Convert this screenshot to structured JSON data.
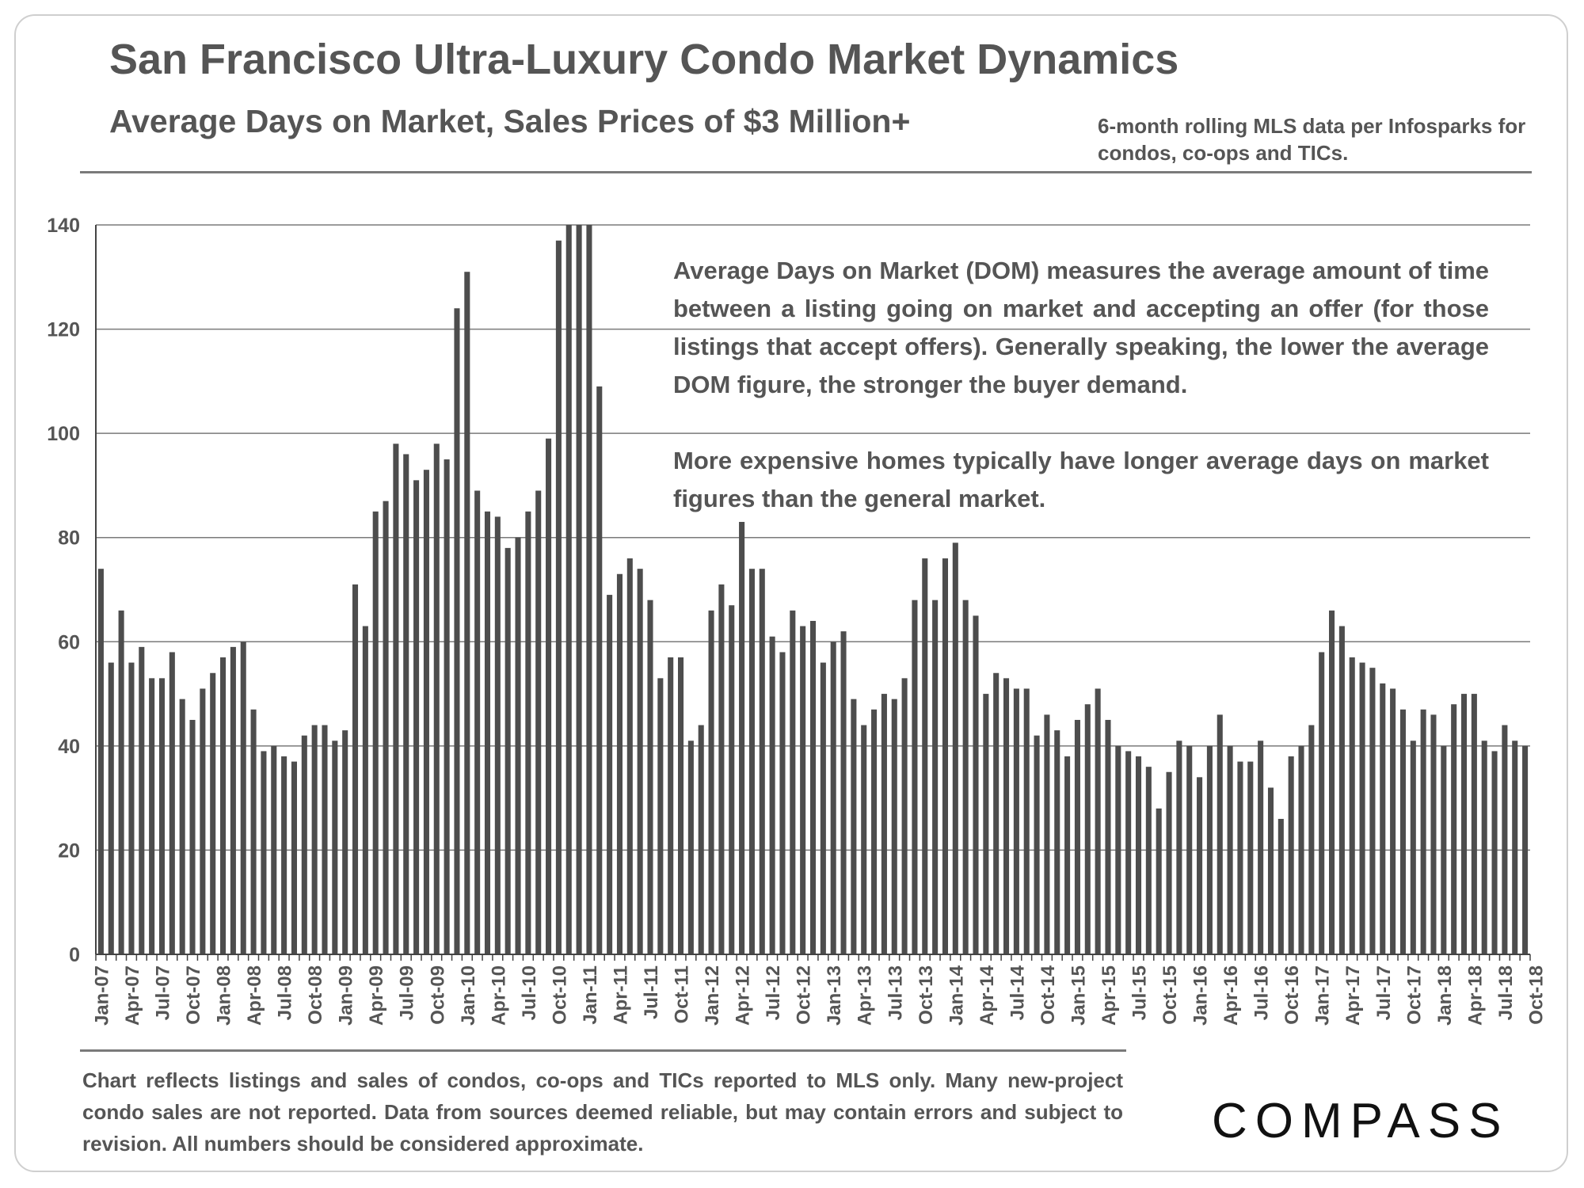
{
  "header": {
    "title": "San Francisco Ultra-Luxury Condo Market Dynamics",
    "subtitle": "Average Days on Market, Sales Prices of $3 Million+",
    "source_note": "6-month rolling MLS data per Infosparks for condos, co-ops and TICs."
  },
  "annotation": {
    "paragraph_1": "Average Days on Market (DOM) measures the average amount of time between a listing going on market and accepting an offer (for those listings that accept offers).  Generally speaking, the lower the average DOM figure, the stronger the buyer demand.",
    "paragraph_2": "More expensive homes typically have longer average days on market figures than the general market."
  },
  "footer": {
    "disclaimer": "Chart reflects listings and sales of condos, co-ops and TICs reported to MLS only. Many new-project condo sales are not reported. Data from sources deemed reliable, but may contain errors and subject to revision. All numbers should be considered approximate.",
    "logo_text": "COMPASS"
  },
  "colors": {
    "bar": "#4d4d4d",
    "text": "#555555",
    "grid": "#7a7a7a"
  },
  "chart_data": {
    "type": "bar",
    "title": "Average Days on Market, Sales Prices of $3 Million+",
    "xlabel": "",
    "ylabel": "",
    "ylim": [
      0,
      140
    ],
    "yticks": [
      0,
      20,
      40,
      60,
      80,
      100,
      120,
      140
    ],
    "grid": true,
    "x_tick_labels": [
      "Jan-07",
      "Apr-07",
      "Jul-07",
      "Oct-07",
      "Jan-08",
      "Apr-08",
      "Jul-08",
      "Oct-08",
      "Jan-09",
      "Apr-09",
      "Jul-09",
      "Oct-09",
      "Jan-10",
      "Apr-10",
      "Jul-10",
      "Oct-10",
      "Jan-11",
      "Apr-11",
      "Jul-11",
      "Oct-11",
      "Jan-12",
      "Apr-12",
      "Jul-12",
      "Oct-12",
      "Jan-13",
      "Apr-13",
      "Jul-13",
      "Oct-13",
      "Jan-14",
      "Apr-14",
      "Jul-14",
      "Oct-14",
      "Jan-15",
      "Apr-15",
      "Jul-15",
      "Oct-15",
      "Jan-16",
      "Apr-16",
      "Jul-16",
      "Oct-16",
      "Jan-17",
      "Apr-17",
      "Jul-17",
      "Oct-17",
      "Jan-18",
      "Apr-18",
      "Jul-18",
      "Oct-18"
    ],
    "start_month": "Jan-07",
    "values": [
      74,
      56,
      66,
      56,
      59,
      53,
      53,
      58,
      49,
      45,
      51,
      54,
      57,
      59,
      60,
      47,
      39,
      40,
      38,
      37,
      42,
      44,
      44,
      41,
      43,
      71,
      63,
      85,
      87,
      98,
      96,
      91,
      93,
      98,
      95,
      124,
      131,
      89,
      85,
      84,
      78,
      80,
      85,
      89,
      99,
      137,
      140,
      140,
      140,
      109,
      69,
      73,
      76,
      74,
      68,
      53,
      57,
      57,
      41,
      44,
      66,
      71,
      67,
      83,
      74,
      74,
      61,
      58,
      66,
      63,
      64,
      56,
      60,
      62,
      49,
      44,
      47,
      50,
      49,
      53,
      68,
      76,
      68,
      76,
      79,
      68,
      65,
      50,
      54,
      53,
      51,
      51,
      42,
      46,
      43,
      38,
      45,
      48,
      51,
      45,
      40,
      39,
      38,
      36,
      28,
      35,
      41,
      40,
      34,
      40,
      46,
      40,
      37,
      37,
      41,
      32,
      26,
      38,
      40,
      44,
      58,
      66,
      63,
      57,
      56,
      55,
      52,
      51,
      47,
      41,
      47,
      46,
      40,
      48,
      50,
      50,
      41,
      39,
      44,
      41,
      40
    ]
  }
}
